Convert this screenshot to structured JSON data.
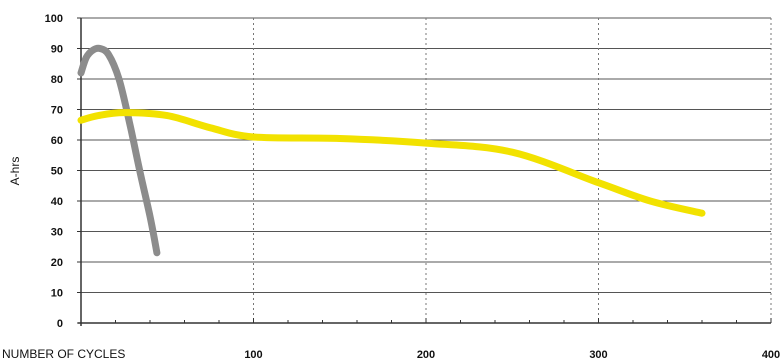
{
  "chart_data": {
    "type": "line",
    "xlabel": "NUMBER OF CYCLES",
    "ylabel": "A-hrs",
    "xlim": [
      0,
      400
    ],
    "ylim": [
      0,
      100
    ],
    "x_ticks": [
      "100",
      "200",
      "300",
      "400"
    ],
    "y_ticks": [
      "0",
      "10",
      "20",
      "30",
      "40",
      "50",
      "60",
      "70",
      "80",
      "90",
      "100"
    ],
    "grid": {
      "horizontal": "solid",
      "vertical": "dotted"
    },
    "series": [
      {
        "color": "#8c8c8c",
        "x": [
          0,
          3,
          7,
          11,
          16,
          22,
          28,
          34,
          40,
          44
        ],
        "y": [
          82,
          87,
          89.5,
          90,
          88,
          80,
          66,
          50,
          35,
          23
        ]
      },
      {
        "color": "#f2e200",
        "x": [
          0,
          10,
          25,
          50,
          75,
          100,
          150,
          200,
          250,
          300,
          330,
          360
        ],
        "y": [
          66.5,
          68,
          69,
          68,
          64,
          61,
          60.5,
          59,
          56,
          46,
          40,
          36
        ]
      }
    ]
  }
}
